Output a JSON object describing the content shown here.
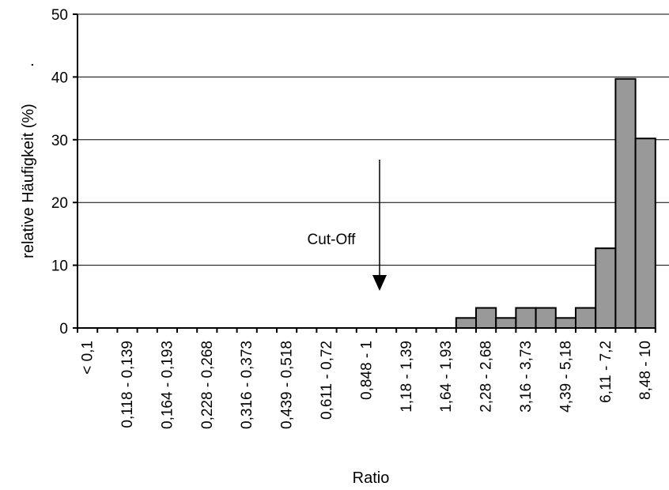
{
  "chart_data": {
    "type": "bar",
    "title": "",
    "xlabel": "Ratio",
    "ylabel": "relative Häufigkeit (%)",
    "ylabel_suffix": ".",
    "ylim": [
      0,
      50
    ],
    "yticks": [
      0,
      10,
      20,
      30,
      40,
      50
    ],
    "grid": true,
    "legend": "none",
    "bar_color": "#999999",
    "categories": [
      "< 0,1",
      "",
      "0,118 - 0,139",
      "",
      "0,164 - 0,193",
      "",
      "0,228 - 0,268",
      "",
      "0,316 - 0,373",
      "",
      "0,439 - 0,518",
      "",
      "0,611 - 0,72",
      "",
      "0,848 - 1",
      "",
      "1,18 - 1,39",
      "",
      "1,64 - 1,93",
      "",
      "2,28 - 2,68",
      "",
      "3,16 - 3,73",
      "",
      "4,39 - 5,18",
      "",
      "6,11 - 7,2",
      "",
      "8,48 - 10"
    ],
    "values": [
      0,
      0,
      0,
      0,
      0,
      0,
      0,
      0,
      0,
      0,
      0,
      0,
      0,
      0,
      0,
      0,
      0,
      0,
      0,
      1.6,
      3.2,
      1.6,
      3.2,
      3.2,
      1.6,
      3.2,
      12.7,
      39.7,
      30.2
    ],
    "annotation": {
      "text": "Cut-Off",
      "arrow": "down",
      "x_category_index": 15
    }
  }
}
